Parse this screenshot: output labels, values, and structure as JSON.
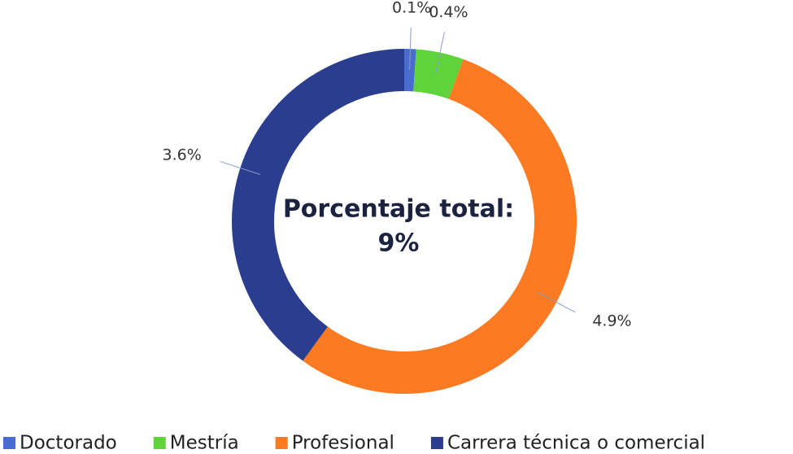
{
  "chart_data": {
    "type": "donut",
    "center_text": [
      "Porcentaje total:",
      "9%"
    ],
    "categories": [
      "Doctorado",
      "Mestría",
      "Profesional",
      "Carrera técnica o comercial"
    ],
    "values": [
      0.1,
      0.4,
      4.9,
      3.6
    ],
    "value_labels": [
      "0.1%",
      "0.4%",
      "4.9%",
      "3.6%"
    ],
    "colors": [
      "#4a6bd0",
      "#5fd43a",
      "#fb7a22",
      "#2a3d8e"
    ],
    "legend": "bottom"
  }
}
